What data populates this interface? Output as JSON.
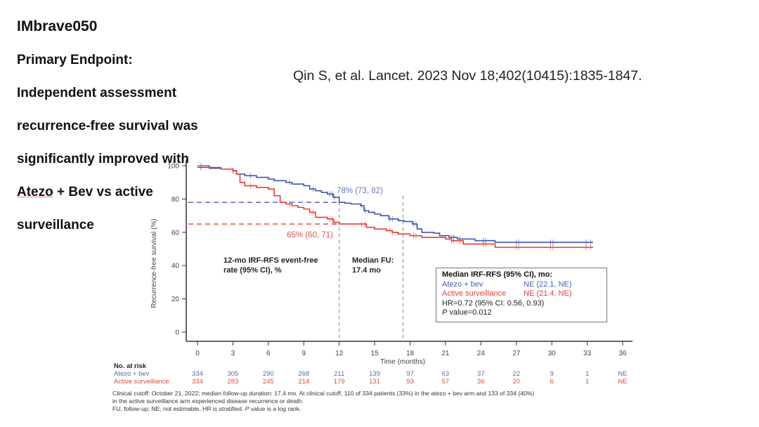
{
  "slide": {
    "title": "IMbrave050",
    "subtitle_lines": [
      "Primary Endpoint:",
      "Independent assessment",
      "recurrence-free survival was",
      "significantly improved with"
    ],
    "subtitle_line5_underlined": "Atezo",
    "subtitle_line5_rest": " + Bev vs active",
    "subtitle_line6": "surveillance",
    "citation": "Qin S, et al. Lancet. 2023 Nov 18;402(10415):1835-1847."
  },
  "colors": {
    "atezo": "#3f55b0",
    "surveillance": "#ea3a30",
    "atezo_text": "#5a6bb8",
    "surveillance_text": "#e04b45"
  },
  "chart_data": {
    "type": "line",
    "subtype": "kaplan-meier",
    "title": "",
    "xlabel": "Time (months)",
    "ylabel": "Recurrence-free survival (%)",
    "xlim": [
      0,
      36
    ],
    "ylim": [
      0,
      100
    ],
    "x_ticks": [
      0,
      3,
      6,
      9,
      12,
      15,
      18,
      21,
      24,
      27,
      30,
      33,
      36
    ],
    "y_ticks": [
      0,
      20,
      40,
      60,
      80,
      100
    ],
    "grid": false,
    "series": [
      {
        "name": "Atezo + bev",
        "color_key": "atezo",
        "steps": [
          [
            0,
            99
          ],
          [
            1,
            98.5
          ],
          [
            2,
            98
          ],
          [
            3,
            97
          ],
          [
            3.3,
            95
          ],
          [
            4,
            94
          ],
          [
            5,
            93
          ],
          [
            6,
            92
          ],
          [
            6.5,
            91
          ],
          [
            7.5,
            90
          ],
          [
            8,
            89
          ],
          [
            9,
            88
          ],
          [
            9.5,
            86
          ],
          [
            10,
            85
          ],
          [
            10.5,
            84
          ],
          [
            11,
            83
          ],
          [
            11.5,
            81
          ],
          [
            12,
            78
          ],
          [
            12.5,
            77.5
          ],
          [
            13,
            77
          ],
          [
            13.8,
            76
          ],
          [
            14.1,
            73
          ],
          [
            14.5,
            72
          ],
          [
            15,
            71
          ],
          [
            15.5,
            70
          ],
          [
            16.2,
            68
          ],
          [
            17,
            67
          ],
          [
            17.5,
            66.5
          ],
          [
            18.2,
            65
          ],
          [
            18.6,
            62
          ],
          [
            19,
            60
          ],
          [
            20,
            59.5
          ],
          [
            20.5,
            58
          ],
          [
            21.3,
            57
          ],
          [
            22,
            56
          ],
          [
            22.5,
            56
          ],
          [
            23.5,
            55
          ],
          [
            25.2,
            54
          ],
          [
            36,
            54
          ]
        ],
        "end_month": 33.5,
        "landmark_12mo": "78% (73, 82)",
        "landmark_value": 78
      },
      {
        "name": "Active surveillance",
        "color_key": "surveillance",
        "steps": [
          [
            0,
            100
          ],
          [
            1,
            99
          ],
          [
            2,
            98
          ],
          [
            3,
            97
          ],
          [
            3.3,
            95
          ],
          [
            3.6,
            90
          ],
          [
            4,
            88
          ],
          [
            5,
            87
          ],
          [
            6,
            86
          ],
          [
            6.5,
            82
          ],
          [
            7,
            78
          ],
          [
            7.5,
            77
          ],
          [
            8,
            76
          ],
          [
            8.5,
            75
          ],
          [
            9,
            74
          ],
          [
            9.5,
            72
          ],
          [
            10,
            69
          ],
          [
            11,
            68
          ],
          [
            11.5,
            66
          ],
          [
            12,
            65
          ],
          [
            13,
            65
          ],
          [
            14,
            65
          ],
          [
            14.3,
            63
          ],
          [
            15,
            62
          ],
          [
            16,
            61
          ],
          [
            16.5,
            60
          ],
          [
            17,
            59
          ],
          [
            18,
            58
          ],
          [
            19,
            57
          ],
          [
            20,
            57
          ],
          [
            21,
            56
          ],
          [
            21.5,
            55
          ],
          [
            22.5,
            53
          ],
          [
            25.2,
            51
          ],
          [
            36,
            51
          ]
        ],
        "end_month": 33.5,
        "landmark_12mo": "65% (60, 71)",
        "landmark_value": 65
      }
    ],
    "reference_lines": [
      {
        "x": 12,
        "style": "dashed"
      },
      {
        "x": 17.4,
        "style": "dashed"
      }
    ],
    "annotations": {
      "event_free_label_line1": "12-mo IRF-RFS event-free",
      "event_free_label_line2": "rate (95% CI), %",
      "median_fu_line1": "Median FU:",
      "median_fu_line2": "17.4 mo"
    },
    "number_at_risk": {
      "header": "No. at risk",
      "times": [
        0,
        3,
        6,
        9,
        12,
        15,
        18,
        21,
        24,
        27,
        30,
        33,
        36
      ],
      "rows": [
        {
          "label": "Atezo + bev",
          "color_key": "atezo_text",
          "values": [
            "334",
            "305",
            "290",
            "268",
            "211",
            "139",
            "97",
            "63",
            "37",
            "22",
            "9",
            "1",
            "NE"
          ]
        },
        {
          "label": "Active surveillance",
          "color_key": "surveillance_text",
          "values": [
            "334",
            "283",
            "245",
            "214",
            "179",
            "131",
            "93",
            "57",
            "36",
            "20",
            "6",
            "1",
            "NE"
          ]
        }
      ]
    },
    "legend": {
      "placement": "bottom-right",
      "header": "Median IRF-RFS (95% CI), mo:",
      "rows": [
        {
          "label": "Atezo + bev",
          "value": "NE (22.1, NE)",
          "color_key": "atezo_text"
        },
        {
          "label": "Active surveillance",
          "value": "NE (21.4, NE)",
          "color_key": "surveillance_text"
        }
      ],
      "hr": "HR=0.72 (95% CI: 0.56, 0.93)",
      "p_italic": "P",
      "p_rest": " value=0.012"
    }
  },
  "footnote": {
    "line1": "Clinical cutoff: October 21, 2022; median follow-up duration: 17.4 mo. At clinical cutoff, 110 of 334 patients (33%) in the atezo + bev arm and 133 of 334 (40%)",
    "line2": "in the active surveillance arm experienced disease recurrence or death.",
    "line3_pre": "FU, follow-up; NE, not estimable. HR is stratified. ",
    "line3_italic": "P",
    "line3_post": " value is a log rank."
  }
}
